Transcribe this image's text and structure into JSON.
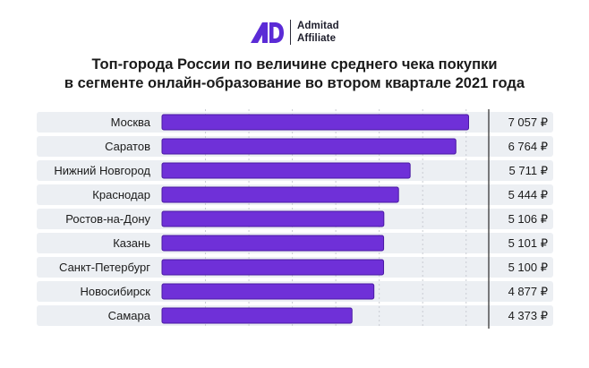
{
  "brand": {
    "line1": "Admitad",
    "line2": "Affiliate"
  },
  "colors": {
    "bar": "#6f30d8",
    "bar_stroke": "#4a1aa3",
    "row_bg": "#eceff3",
    "label": "#1b1b1b",
    "grid": "#c9ccd3"
  },
  "chart_data": {
    "type": "bar",
    "orientation": "horizontal",
    "title_lines": [
      "Топ-города России по величине среднего чека покупки",
      "в сегменте онлайн-образование во втором квартале 2021 года"
    ],
    "categories": [
      "Москва",
      "Саратов",
      "Нижний Новгород",
      "Краснодар",
      "Ростов-на-Дону",
      "Казань",
      "Санкт-Петербург",
      "Новосибирск",
      "Самара"
    ],
    "values": [
      7057,
      6764,
      5711,
      5444,
      5106,
      5101,
      5100,
      4877,
      4373
    ],
    "value_labels": [
      "7 057 ₽",
      "6 764 ₽",
      "5 711 ₽",
      "5 444 ₽",
      "5 106 ₽",
      "5 101 ₽",
      "5 100 ₽",
      "4 877 ₽",
      "4 373 ₽"
    ],
    "xlim": [
      0,
      7500
    ],
    "grid": true,
    "legend": false
  }
}
